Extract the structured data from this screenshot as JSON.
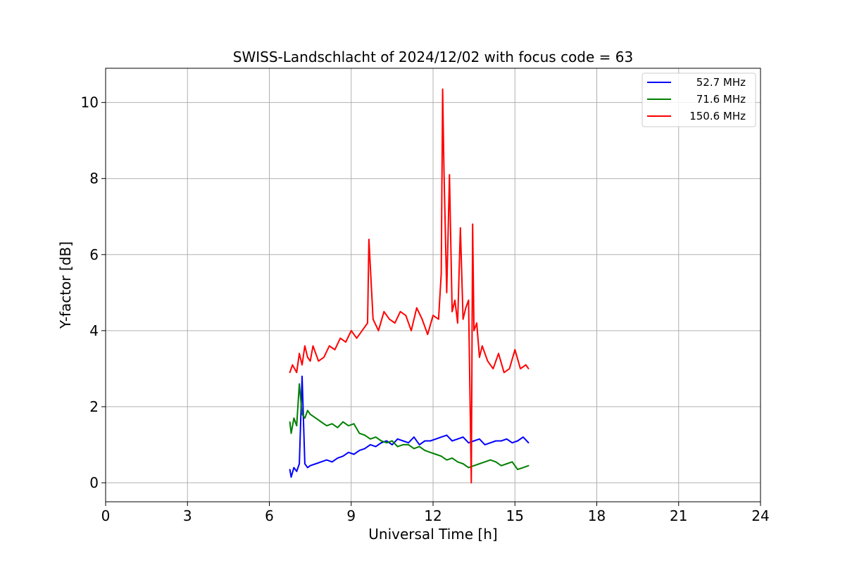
{
  "chart_data": {
    "type": "line",
    "title": "SWISS-Landschlacht of 2024/12/02 with focus code = 63",
    "xlabel": "Universal Time [h]",
    "ylabel": "Y-factor [dB]",
    "xlim": [
      0,
      24
    ],
    "ylim": [
      -0.5,
      10.9
    ],
    "xticks": [
      0,
      3,
      6,
      9,
      12,
      15,
      18,
      21,
      24
    ],
    "yticks": [
      0,
      2,
      4,
      6,
      8,
      10
    ],
    "grid": true,
    "legend_position": "top-right",
    "series": [
      {
        "name": "52.7 MHz",
        "color": "#0000ff",
        "x": [
          6.75,
          6.8,
          6.9,
          7.0,
          7.1,
          7.2,
          7.3,
          7.4,
          7.5,
          7.7,
          7.9,
          8.1,
          8.3,
          8.5,
          8.7,
          8.9,
          9.1,
          9.3,
          9.5,
          9.7,
          9.9,
          10.1,
          10.3,
          10.5,
          10.7,
          10.9,
          11.1,
          11.3,
          11.5,
          11.7,
          11.9,
          12.1,
          12.3,
          12.5,
          12.7,
          12.9,
          13.1,
          13.3,
          13.5,
          13.7,
          13.9,
          14.1,
          14.3,
          14.5,
          14.7,
          14.9,
          15.1,
          15.3,
          15.5
        ],
        "y": [
          0.35,
          0.15,
          0.4,
          0.3,
          0.5,
          2.8,
          0.5,
          0.4,
          0.45,
          0.5,
          0.55,
          0.6,
          0.55,
          0.65,
          0.7,
          0.8,
          0.75,
          0.85,
          0.9,
          1.0,
          0.95,
          1.05,
          1.1,
          1.0,
          1.15,
          1.1,
          1.05,
          1.2,
          1.0,
          1.1,
          1.1,
          1.15,
          1.2,
          1.25,
          1.1,
          1.15,
          1.2,
          1.05,
          1.1,
          1.15,
          1.0,
          1.05,
          1.1,
          1.1,
          1.15,
          1.05,
          1.1,
          1.2,
          1.05
        ]
      },
      {
        "name": "71.6 MHz",
        "color": "#008000",
        "x": [
          6.75,
          6.8,
          6.9,
          7.0,
          7.1,
          7.2,
          7.3,
          7.4,
          7.5,
          7.7,
          7.9,
          8.1,
          8.3,
          8.5,
          8.7,
          8.9,
          9.1,
          9.3,
          9.5,
          9.7,
          9.9,
          10.1,
          10.3,
          10.5,
          10.7,
          10.9,
          11.1,
          11.3,
          11.5,
          11.7,
          11.9,
          12.1,
          12.3,
          12.5,
          12.7,
          12.9,
          13.1,
          13.3,
          13.5,
          13.7,
          13.9,
          14.1,
          14.3,
          14.5,
          14.7,
          14.9,
          15.1,
          15.3,
          15.5
        ],
        "y": [
          1.6,
          1.3,
          1.7,
          1.5,
          2.6,
          1.8,
          1.7,
          1.9,
          1.8,
          1.7,
          1.6,
          1.5,
          1.55,
          1.45,
          1.6,
          1.5,
          1.55,
          1.3,
          1.25,
          1.15,
          1.2,
          1.1,
          1.05,
          1.1,
          0.95,
          1.0,
          1.0,
          0.9,
          0.95,
          0.85,
          0.8,
          0.75,
          0.7,
          0.6,
          0.65,
          0.55,
          0.5,
          0.4,
          0.45,
          0.5,
          0.55,
          0.6,
          0.55,
          0.45,
          0.5,
          0.55,
          0.35,
          0.4,
          0.45
        ]
      },
      {
        "name": "150.6 MHz",
        "color": "#ff0000",
        "x": [
          6.75,
          6.85,
          7.0,
          7.1,
          7.2,
          7.3,
          7.4,
          7.5,
          7.6,
          7.7,
          7.8,
          8.0,
          8.2,
          8.4,
          8.6,
          8.8,
          9.0,
          9.2,
          9.4,
          9.6,
          9.65,
          9.8,
          10.0,
          10.2,
          10.4,
          10.6,
          10.8,
          11.0,
          11.2,
          11.4,
          11.6,
          11.8,
          12.0,
          12.2,
          12.3,
          12.35,
          12.4,
          12.5,
          12.6,
          12.7,
          12.8,
          12.9,
          13.0,
          13.1,
          13.2,
          13.3,
          13.4,
          13.45,
          13.5,
          13.6,
          13.7,
          13.8,
          14.0,
          14.2,
          14.4,
          14.6,
          14.8,
          15.0,
          15.2,
          15.4,
          15.5
        ],
        "y": [
          2.9,
          3.1,
          2.9,
          3.4,
          3.1,
          3.6,
          3.3,
          3.2,
          3.6,
          3.4,
          3.2,
          3.3,
          3.6,
          3.5,
          3.8,
          3.7,
          4.0,
          3.8,
          4.0,
          4.2,
          6.4,
          4.3,
          4.0,
          4.5,
          4.3,
          4.2,
          4.5,
          4.4,
          4.0,
          4.6,
          4.3,
          3.9,
          4.4,
          4.3,
          5.5,
          10.35,
          8.2,
          5.0,
          8.1,
          4.5,
          4.8,
          4.2,
          6.7,
          4.3,
          4.6,
          4.8,
          0.0,
          6.8,
          4.0,
          4.2,
          3.3,
          3.6,
          3.2,
          3.0,
          3.4,
          2.9,
          3.0,
          3.5,
          3.0,
          3.1,
          3.0
        ]
      }
    ]
  }
}
